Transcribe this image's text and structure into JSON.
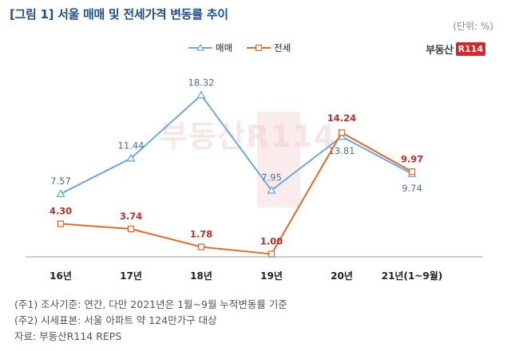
{
  "title": "[그림 1] 서울 매매 및 전세가격 변동률 추이",
  "unit": "(단위: %)",
  "brand": {
    "text": "부동산",
    "mark": "R114"
  },
  "watermark": "부동산R114",
  "chart_data": {
    "type": "line",
    "title": "서울 매매 및 전세가격 변동률 추이",
    "categories": [
      "16년",
      "17년",
      "18년",
      "19년",
      "20년",
      "21년(1~9월)"
    ],
    "ylim": [
      0,
      20
    ],
    "grid": false,
    "legend": "top-center",
    "series": [
      {
        "name": "매매",
        "color": "#6fa8dc",
        "marker": "triangle",
        "label_color": "#4a6f9a",
        "values": [
          7.57,
          11.44,
          18.32,
          7.95,
          13.81,
          9.74
        ],
        "labels": [
          "7.57",
          "11.44",
          "18.32",
          "7.95",
          "13.81",
          "9.74"
        ]
      },
      {
        "name": "전세",
        "color": "#e06c2c",
        "marker": "square",
        "label_color": "#c0302a",
        "values": [
          4.3,
          3.74,
          1.78,
          1.0,
          14.24,
          9.97
        ],
        "labels": [
          "4.30",
          "3.74",
          "1.78",
          "1.00",
          "14.24",
          "9.97"
        ]
      }
    ]
  },
  "notes": [
    "(주1) 조사기준: 연간, 다만 2021년은 1월~9월 누적변동률 기준",
    "(주2) 시세표본: 서울 아파트 약 124만가구 대상",
    "자료: 부동산R114 REPS"
  ]
}
